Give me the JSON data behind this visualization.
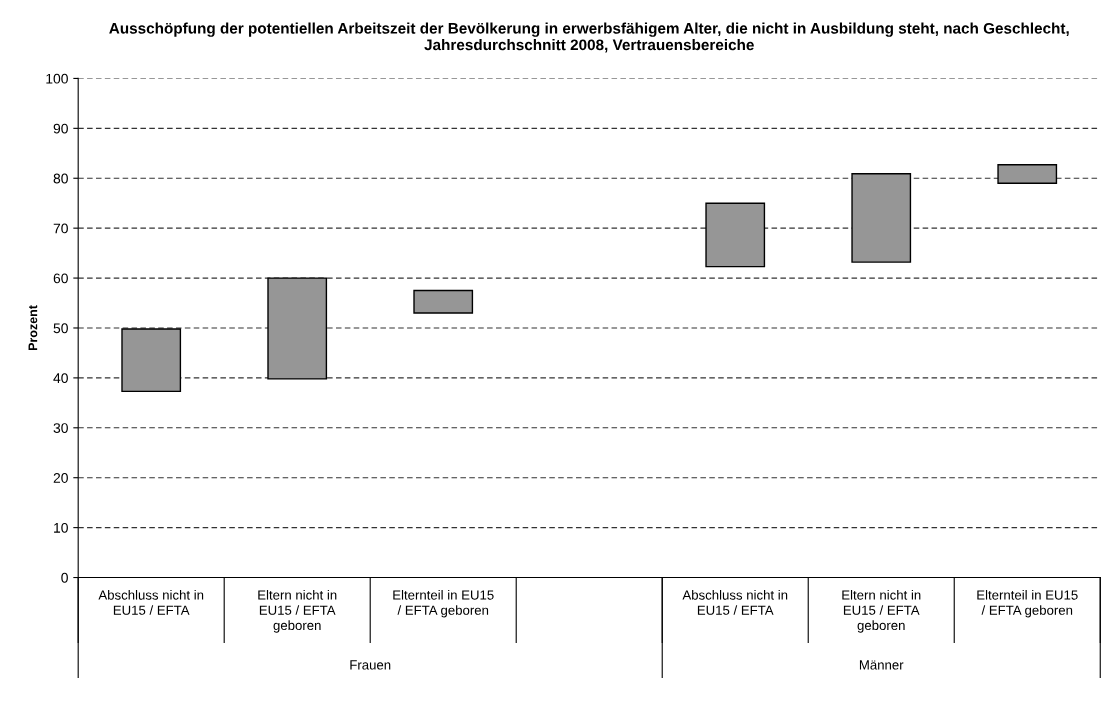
{
  "chart_data": {
    "type": "bar",
    "title": "Ausschöpfung der potentiellen Arbeitszeit der Bevölkerung in erwerbsfähigem Alter, die nicht in Ausbildung steht, nach Geschlecht, Jahresdurchschnitt 2008, Vertrauensbereiche",
    "ylabel": "Prozent",
    "categories": [
      "Abschluss nicht in EU15 / EFTA",
      "Eltern nicht in EU15 / EFTA geboren",
      "Elternteil in EU15 / EFTA geboren",
      null,
      "Abschluss nicht in EU15 / EFTA",
      "Eltern nicht in EU15 / EFTA geboren",
      "Elternteil in EU15 / EFTA geboren"
    ],
    "base": [
      37.3,
      39.8,
      53.0,
      null,
      62.3,
      63.2,
      79.0
    ],
    "values": [
      12.5,
      20.2,
      4.5,
      null,
      12.7,
      17.7,
      3.7
    ],
    "color": "#969696",
    "ylim": [
      0,
      100
    ],
    "yticks": [
      0,
      10,
      20,
      30,
      40,
      50,
      60,
      70,
      80,
      90,
      100
    ],
    "grid": "y",
    "annotations": [
      "Frauen",
      "Männer"
    ]
  }
}
